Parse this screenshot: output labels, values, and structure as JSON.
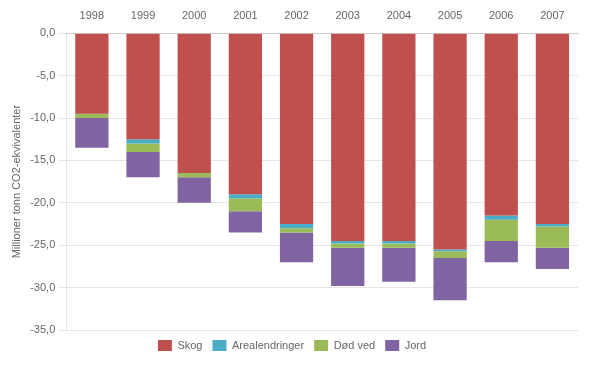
{
  "chart_data": {
    "type": "bar",
    "stacked": true,
    "categories": [
      "1998",
      "1999",
      "2000",
      "2001",
      "2002",
      "2003",
      "2004",
      "2005",
      "2006",
      "2007"
    ],
    "series": [
      {
        "name": "Skog",
        "color": "#C0504D",
        "values": [
          -9.5,
          -12.5,
          -16.5,
          -19.0,
          -22.5,
          -24.5,
          -24.5,
          -25.5,
          -21.5,
          -22.5
        ]
      },
      {
        "name": "Arealendringer",
        "color": "#4BACC6",
        "values": [
          0.0,
          -0.5,
          0.0,
          -0.5,
          -0.5,
          -0.3,
          -0.3,
          -0.2,
          -0.5,
          -0.3
        ]
      },
      {
        "name": "Død ved",
        "color": "#9BBB59",
        "values": [
          -0.5,
          -1.0,
          -0.5,
          -1.5,
          -0.5,
          -0.5,
          -0.5,
          -0.8,
          -2.5,
          -2.5
        ]
      },
      {
        "name": "Jord",
        "color": "#8064A2",
        "values": [
          -3.5,
          -3.0,
          -3.0,
          -2.5,
          -3.5,
          -4.5,
          -4.0,
          -5.0,
          -2.5,
          -2.5
        ]
      }
    ],
    "ylabel": "Millioner tonn CO2-ekvivalenter",
    "ylim": [
      -35,
      0
    ],
    "yticks": [
      {
        "value": 0,
        "label": "0,0"
      },
      {
        "value": -5,
        "label": "-5,0"
      },
      {
        "value": -10,
        "label": "-10,0"
      },
      {
        "value": -15,
        "label": "-15,0"
      },
      {
        "value": -20,
        "label": "-20,0"
      },
      {
        "value": -25,
        "label": "-25,0"
      },
      {
        "value": -30,
        "label": "-30,0"
      },
      {
        "value": -35,
        "label": "-35,0"
      }
    ],
    "grid": true,
    "legend": "bottom"
  }
}
